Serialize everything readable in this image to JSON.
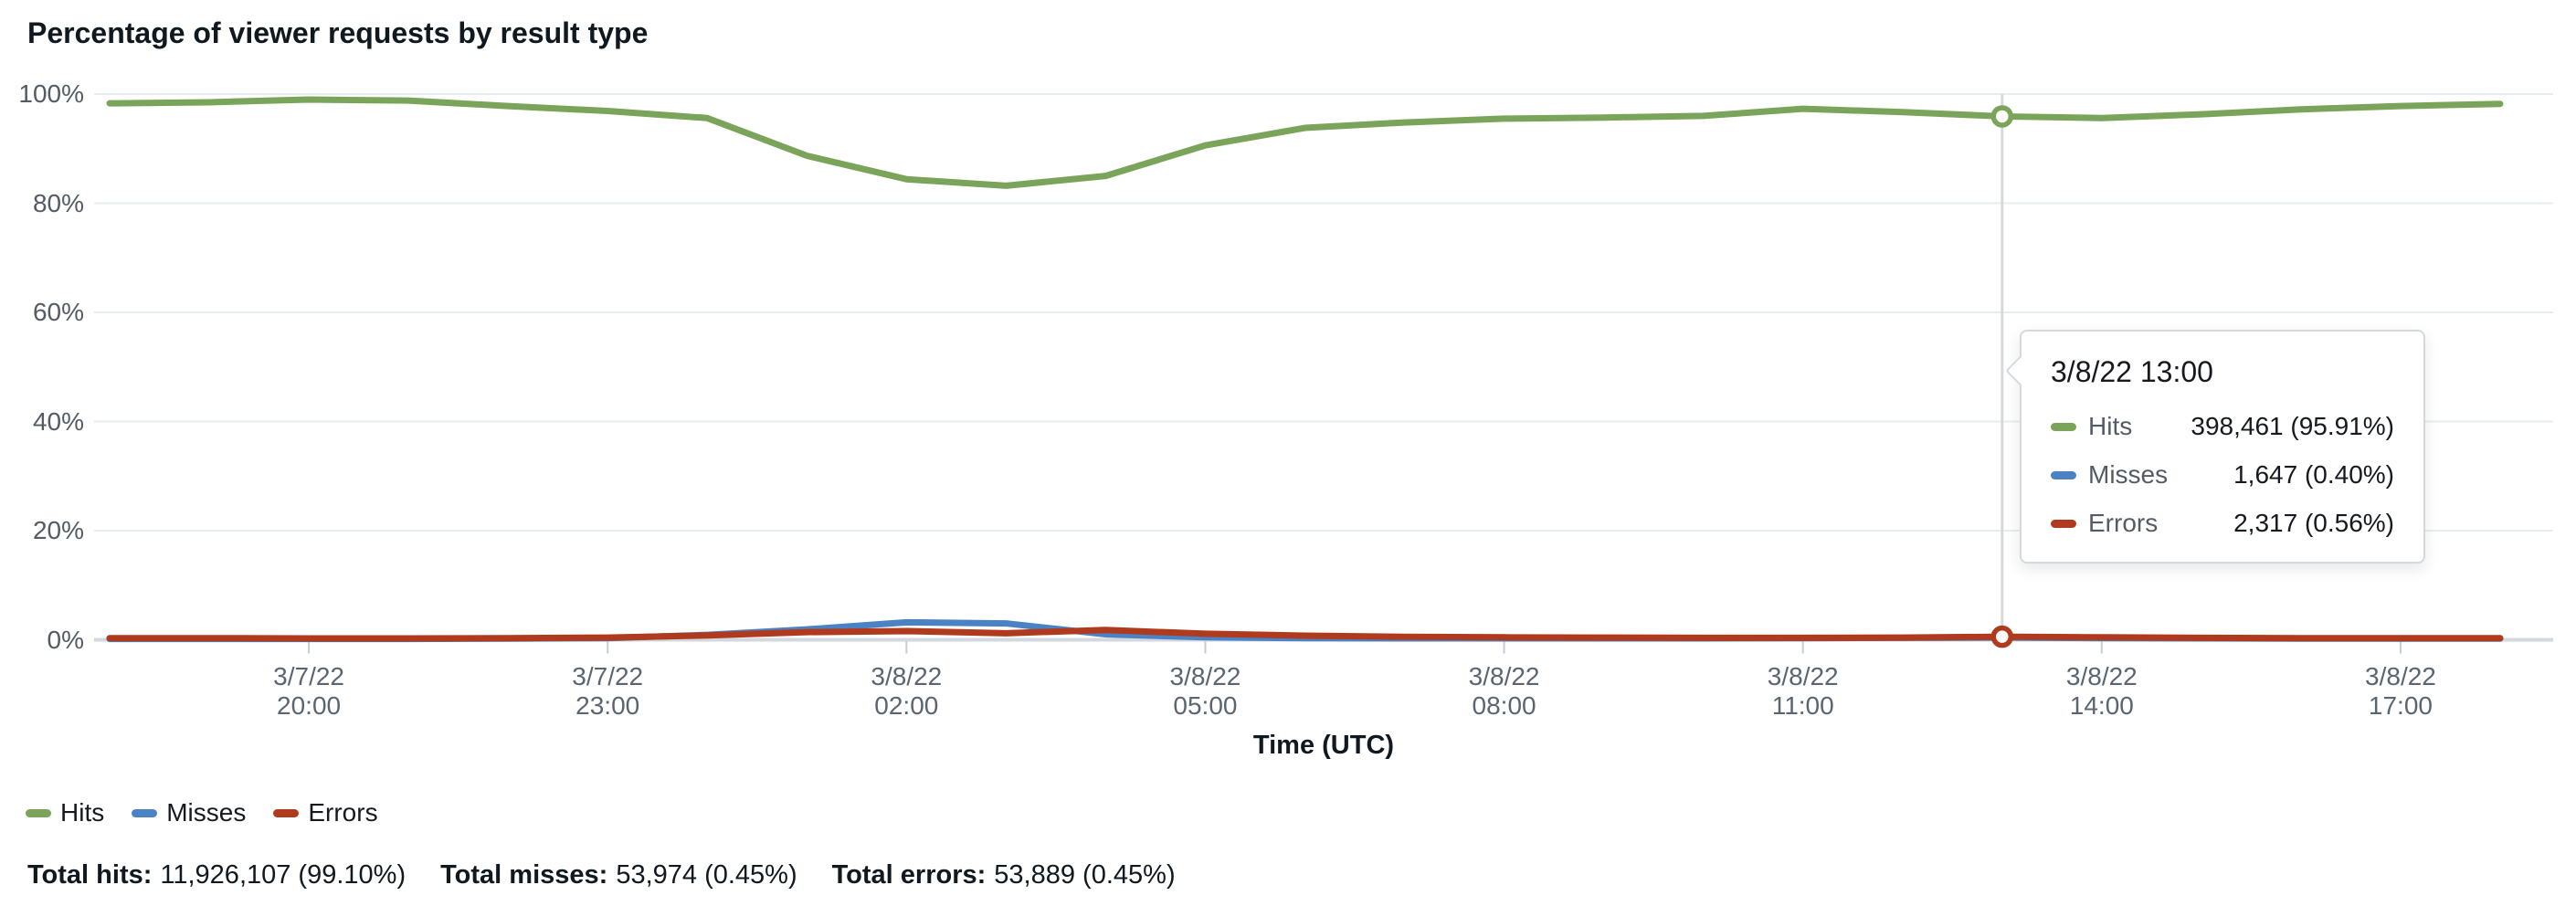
{
  "header": {
    "title": "Percentage of viewer requests by result type"
  },
  "chart": {
    "y_axis_labels": [
      "100%",
      "80%",
      "60%",
      "40%",
      "20%",
      "0%"
    ],
    "x_axis_title": "Time (UTC)",
    "x_ticks": [
      {
        "line1": "3/7/22",
        "line2": "20:00"
      },
      {
        "line1": "3/7/22",
        "line2": "23:00"
      },
      {
        "line1": "3/8/22",
        "line2": "02:00"
      },
      {
        "line1": "3/8/22",
        "line2": "05:00"
      },
      {
        "line1": "3/8/22",
        "line2": "08:00"
      },
      {
        "line1": "3/8/22",
        "line2": "11:00"
      },
      {
        "line1": "3/8/22",
        "line2": "14:00"
      },
      {
        "line1": "3/8/22",
        "line2": "17:00"
      }
    ]
  },
  "colors": {
    "hits": "#7aa45a",
    "misses": "#4a82c3",
    "errors": "#b03a1e",
    "grid": "#e9ecee",
    "baseline": "#d2d8dd",
    "hover_line": "#d4d9de",
    "tick": "#c6cdd4"
  },
  "tooltip": {
    "header": "3/8/22 13:00",
    "rows": [
      {
        "label": "Hits",
        "value": "398,461 (95.91%)",
        "color": "#7aa45a"
      },
      {
        "label": "Misses",
        "value": "1,647 (0.40%)",
        "color": "#4a82c3"
      },
      {
        "label": "Errors",
        "value": "2,317 (0.56%)",
        "color": "#b03a1e"
      }
    ]
  },
  "legend": {
    "items": [
      {
        "label": "Hits",
        "color": "#7aa45a"
      },
      {
        "label": "Misses",
        "color": "#4a82c3"
      },
      {
        "label": "Errors",
        "color": "#b03a1e"
      }
    ]
  },
  "totals": [
    {
      "label": "Total hits:",
      "value": "11,926,107 (99.10%)"
    },
    {
      "label": "Total misses:",
      "value": "53,974 (0.45%)"
    },
    {
      "label": "Total errors:",
      "value": "53,889 (0.45%)"
    }
  ],
  "chart_data": {
    "type": "line",
    "title": "Percentage of viewer requests by result type",
    "xlabel": "Time (UTC)",
    "ylabel": "Percentage of viewer requests",
    "ylim": [
      0,
      100
    ],
    "grid": "horizontal",
    "legend_position": "bottom",
    "x": [
      "3/7/22 18:00",
      "3/7/22 19:00",
      "3/7/22 20:00",
      "3/7/22 21:00",
      "3/7/22 22:00",
      "3/7/22 23:00",
      "3/8/22 00:00",
      "3/8/22 01:00",
      "3/8/22 02:00",
      "3/8/22 03:00",
      "3/8/22 04:00",
      "3/8/22 05:00",
      "3/8/22 06:00",
      "3/8/22 07:00",
      "3/8/22 08:00",
      "3/8/22 09:00",
      "3/8/22 10:00",
      "3/8/22 11:00",
      "3/8/22 12:00",
      "3/8/22 13:00",
      "3/8/22 14:00",
      "3/8/22 15:00",
      "3/8/22 16:00",
      "3/8/22 17:00",
      "3/8/22 18:00"
    ],
    "x_tick_labels_shown": [
      "3/7/22 20:00",
      "3/7/22 23:00",
      "3/8/22 02:00",
      "3/8/22 05:00",
      "3/8/22 08:00",
      "3/8/22 11:00",
      "3/8/22 14:00",
      "3/8/22 17:00"
    ],
    "series": [
      {
        "name": "Hits",
        "color": "#7aa45a",
        "values": [
          98.3,
          98.5,
          99.0,
          98.8,
          97.8,
          96.9,
          95.6,
          88.7,
          84.4,
          83.2,
          85.0,
          90.6,
          93.8,
          94.8,
          95.5,
          95.7,
          96.0,
          97.3,
          96.7,
          95.91,
          95.6,
          96.3,
          97.2,
          97.8,
          98.2
        ]
      },
      {
        "name": "Misses",
        "color": "#4a82c3",
        "values": [
          0.15,
          0.15,
          0.15,
          0.15,
          0.2,
          0.3,
          0.9,
          1.9,
          3.2,
          3.0,
          1.0,
          0.45,
          0.3,
          0.25,
          0.25,
          0.25,
          0.25,
          0.3,
          0.35,
          0.4,
          0.3,
          0.25,
          0.2,
          0.2,
          0.2
        ]
      },
      {
        "name": "Errors",
        "color": "#b03a1e",
        "values": [
          0.3,
          0.3,
          0.25,
          0.25,
          0.3,
          0.4,
          0.8,
          1.4,
          1.6,
          1.2,
          1.8,
          1.1,
          0.75,
          0.55,
          0.45,
          0.4,
          0.35,
          0.35,
          0.4,
          0.56,
          0.45,
          0.35,
          0.3,
          0.3,
          0.3
        ]
      }
    ],
    "highlight": {
      "x_label": "3/8/22 13:00",
      "x_index": 19,
      "values": {
        "Hits": "398,461 (95.91%)",
        "Misses": "1,647 (0.40%)",
        "Errors": "2,317 (0.56%)"
      }
    }
  }
}
